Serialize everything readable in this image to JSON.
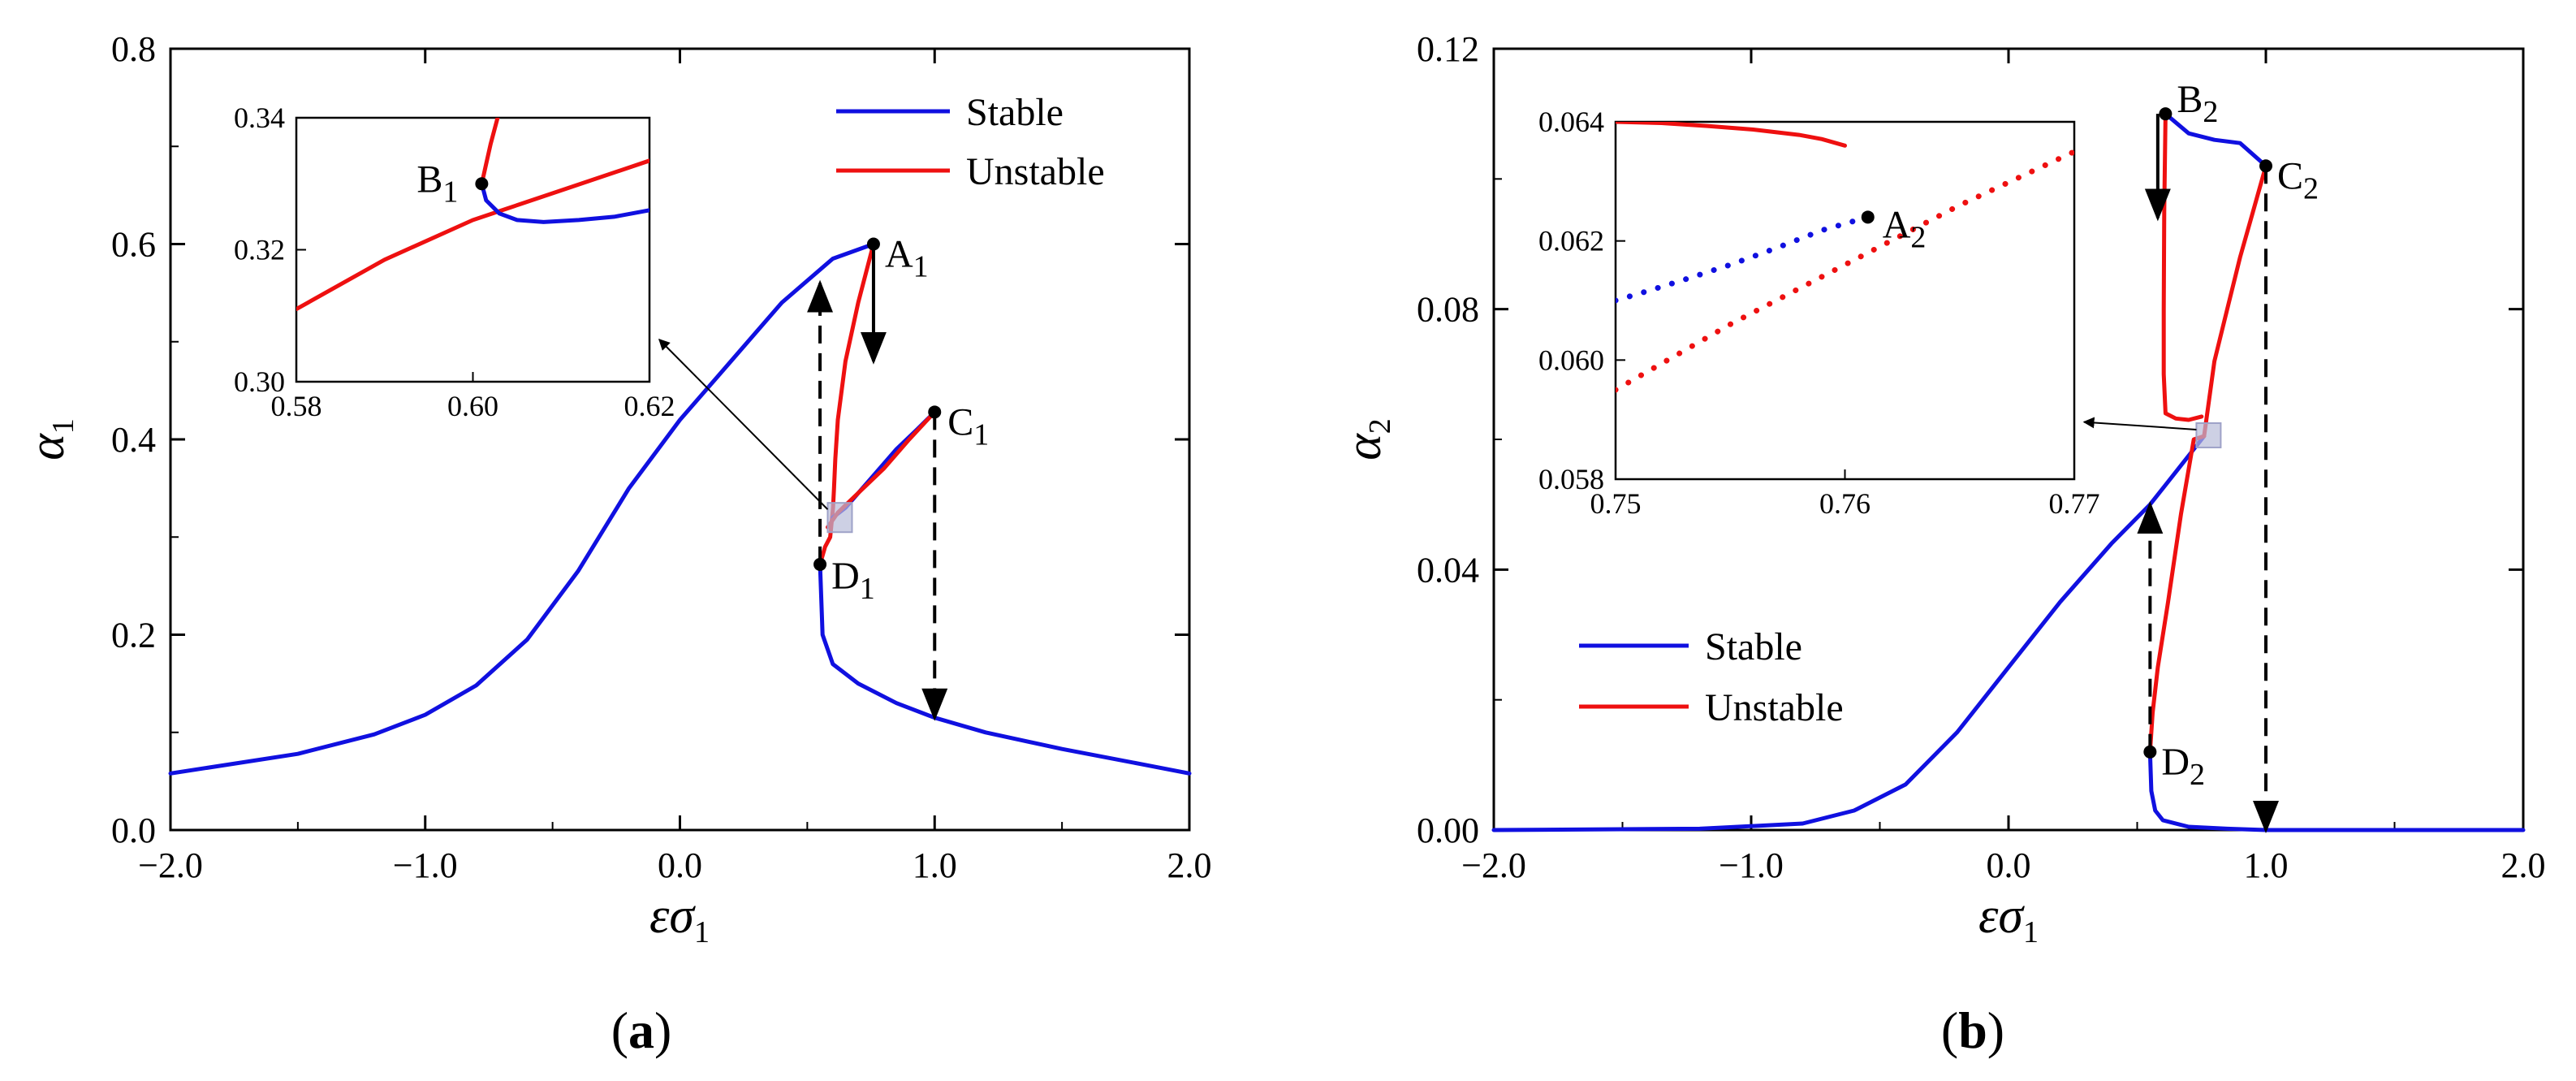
{
  "figure": {
    "panel_a_label": "a",
    "panel_b_label": "b",
    "colors": {
      "stable": "#1010e0",
      "unstable": "#ee1010",
      "axis": "#000000",
      "zoom_box": "#b8bcd8"
    }
  },
  "chart_data": [
    {
      "type": "line",
      "panel": "a",
      "xlabel_main": "εσ",
      "xlabel_sub": "1",
      "ylabel_main": "α",
      "ylabel_sub": "1",
      "xlim": [
        -2.0,
        2.0
      ],
      "ylim": [
        0.0,
        0.8
      ],
      "xticks": [
        -2.0,
        -1.0,
        0.0,
        1.0,
        2.0
      ],
      "xtick_labels": [
        "−2.0",
        "−1.0",
        "0.0",
        "1.0",
        "2.0"
      ],
      "yticks": [
        0.0,
        0.2,
        0.4,
        0.6,
        0.8
      ],
      "ytick_labels": [
        "0.0",
        "0.2",
        "0.4",
        "0.6",
        "0.8"
      ],
      "legend": {
        "position": "top-right",
        "entries": [
          "Stable",
          "Unstable"
        ]
      },
      "series": [
        {
          "name": "Stable",
          "color": "#1010e0",
          "points": [
            [
              -2.0,
              0.058
            ],
            [
              -1.5,
              0.078
            ],
            [
              -1.2,
              0.098
            ],
            [
              -1.0,
              0.118
            ],
            [
              -0.8,
              0.148
            ],
            [
              -0.6,
              0.195
            ],
            [
              -0.4,
              0.265
            ],
            [
              -0.2,
              0.35
            ],
            [
              0.0,
              0.42
            ],
            [
              0.2,
              0.48
            ],
            [
              0.4,
              0.54
            ],
            [
              0.6,
              0.585
            ],
            [
              0.76,
              0.6
            ]
          ]
        },
        {
          "name": "Unstable",
          "color": "#ee1010",
          "points": [
            [
              0.76,
              0.6
            ],
            [
              0.7,
              0.54
            ],
            [
              0.65,
              0.48
            ],
            [
              0.62,
              0.42
            ],
            [
              0.61,
              0.38
            ],
            [
              0.605,
              0.35
            ],
            [
              0.601,
              0.33
            ],
            [
              0.59,
              0.3
            ],
            [
              0.57,
              0.29
            ],
            [
              0.55,
              0.272
            ]
          ]
        },
        {
          "name": "Stable",
          "color": "#1010e0",
          "points": [
            [
              0.55,
              0.272
            ],
            [
              0.56,
              0.2
            ],
            [
              0.6,
              0.17
            ],
            [
              0.7,
              0.15
            ],
            [
              0.85,
              0.13
            ],
            [
              1.0,
              0.115
            ],
            [
              1.2,
              0.1
            ],
            [
              1.5,
              0.083
            ],
            [
              1.8,
              0.068
            ],
            [
              2.0,
              0.058
            ]
          ]
        },
        {
          "name": "Stable",
          "color": "#1010e0",
          "points": [
            [
              0.6,
              0.32
            ],
            [
              0.65,
              0.33
            ],
            [
              0.75,
              0.36
            ],
            [
              0.85,
              0.39
            ],
            [
              0.93,
              0.41
            ],
            [
              1.0,
              0.428
            ]
          ]
        },
        {
          "name": "Unstable",
          "color": "#ee1010",
          "points": [
            [
              1.0,
              0.428
            ],
            [
              0.9,
              0.4
            ],
            [
              0.8,
              0.37
            ],
            [
              0.7,
              0.345
            ],
            [
              0.62,
              0.325
            ],
            [
              0.58,
              0.31
            ]
          ]
        }
      ],
      "points": [
        {
          "label": "A",
          "sub": "1",
          "x": 0.76,
          "y": 0.6
        },
        {
          "label": "C",
          "sub": "1",
          "x": 1.0,
          "y": 0.428
        },
        {
          "label": "D",
          "sub": "1",
          "x": 0.55,
          "y": 0.272
        }
      ],
      "jumps": [
        {
          "x": 0.76,
          "from": 0.6,
          "to": 0.48,
          "style": "solid"
        },
        {
          "x": 1.0,
          "from": 0.428,
          "to": 0.115,
          "style": "dashed"
        },
        {
          "x": 0.55,
          "from": 0.272,
          "to": 0.56,
          "style": "dashed"
        }
      ],
      "zoom_box": {
        "x": [
          0.58,
          0.62
        ],
        "y": [
          0.305,
          0.335
        ]
      },
      "inset": {
        "xlim": [
          0.58,
          0.62
        ],
        "ylim": [
          0.3,
          0.34
        ],
        "xticks": [
          0.58,
          0.6,
          0.62
        ],
        "xtick_labels": [
          "0.58",
          "0.60",
          "0.62"
        ],
        "yticks": [
          0.3,
          0.32,
          0.34
        ],
        "ytick_labels": [
          "0.30",
          "0.32",
          "0.34"
        ],
        "series": [
          {
            "name": "Unstable",
            "color": "#ee1010",
            "points": [
              [
                0.58,
                0.311
              ],
              [
                0.59,
                0.3185
              ],
              [
                0.6,
                0.3245
              ],
              [
                0.61,
                0.329
              ],
              [
                0.62,
                0.3335
              ]
            ]
          },
          {
            "name": "Unstable",
            "color": "#ee1010",
            "points": [
              [
                0.601,
                0.33
              ],
              [
                0.6015,
                0.333
              ],
              [
                0.602,
                0.336
              ],
              [
                0.603,
                0.341
              ]
            ]
          },
          {
            "name": "Stable",
            "color": "#1010e0",
            "points": [
              [
                0.601,
                0.33
              ],
              [
                0.6015,
                0.3275
              ],
              [
                0.603,
                0.3255
              ],
              [
                0.605,
                0.3245
              ],
              [
                0.608,
                0.3242
              ],
              [
                0.612,
                0.3245
              ],
              [
                0.616,
                0.325
              ],
              [
                0.62,
                0.326
              ]
            ]
          }
        ],
        "points": [
          {
            "label": "B",
            "sub": "1",
            "x": 0.601,
            "y": 0.33
          }
        ]
      }
    },
    {
      "type": "line",
      "panel": "b",
      "xlabel_main": "εσ",
      "xlabel_sub": "1",
      "ylabel_main": "α",
      "ylabel_sub": "2",
      "xlim": [
        -2.0,
        2.0
      ],
      "ylim": [
        0.0,
        0.12
      ],
      "xticks": [
        -2.0,
        -1.0,
        0.0,
        1.0,
        2.0
      ],
      "xtick_labels": [
        "−2.0",
        "−1.0",
        "0.0",
        "1.0",
        "2.0"
      ],
      "yticks": [
        0.0,
        0.04,
        0.08,
        0.12
      ],
      "ytick_labels": [
        "0.00",
        "0.04",
        "0.08",
        "0.12"
      ],
      "legend": {
        "position": "bottom-left",
        "entries": [
          "Stable",
          "Unstable"
        ]
      },
      "series": [
        {
          "name": "Stable",
          "color": "#1010e0",
          "points": [
            [
              -2.0,
              0.0
            ],
            [
              -1.2,
              0.0002
            ],
            [
              -0.8,
              0.001
            ],
            [
              -0.6,
              0.003
            ],
            [
              -0.4,
              0.007
            ],
            [
              -0.2,
              0.015
            ],
            [
              0.0,
              0.025
            ],
            [
              0.2,
              0.035
            ],
            [
              0.4,
              0.044
            ],
            [
              0.55,
              0.05
            ],
            [
              0.65,
              0.055
            ],
            [
              0.76,
              0.0605
            ]
          ]
        },
        {
          "name": "Unstable",
          "color": "#ee1010",
          "points": [
            [
              0.76,
              0.0605
            ],
            [
              0.72,
              0.06
            ],
            [
              0.67,
              0.0485
            ],
            [
              0.62,
              0.035
            ],
            [
              0.58,
              0.025
            ],
            [
              0.56,
              0.018
            ],
            [
              0.55,
              0.012
            ]
          ]
        },
        {
          "name": "Stable",
          "color": "#1010e0",
          "points": [
            [
              0.55,
              0.012
            ],
            [
              0.555,
              0.006
            ],
            [
              0.57,
              0.003
            ],
            [
              0.6,
              0.0015
            ],
            [
              0.7,
              0.0005
            ],
            [
              0.85,
              0.0002
            ],
            [
              1.0,
              0.0
            ],
            [
              2.0,
              0.0
            ]
          ]
        },
        {
          "name": "Unstable",
          "color": "#ee1010",
          "points": [
            [
              0.61,
              0.11
            ],
            [
              0.605,
              0.095
            ],
            [
              0.603,
              0.08
            ],
            [
              0.603,
              0.07
            ],
            [
              0.61,
              0.064
            ],
            [
              0.65,
              0.0632
            ],
            [
              0.7,
              0.063
            ],
            [
              0.75,
              0.0635
            ]
          ]
        },
        {
          "name": "Stable",
          "color": "#1010e0",
          "points": [
            [
              0.61,
              0.11
            ],
            [
              0.7,
              0.107
            ],
            [
              0.8,
              0.106
            ],
            [
              0.9,
              0.1055
            ],
            [
              1.0,
              0.102
            ]
          ]
        },
        {
          "name": "Unstable",
          "color": "#ee1010",
          "points": [
            [
              1.0,
              0.102
            ],
            [
              0.95,
              0.095
            ],
            [
              0.9,
              0.088
            ],
            [
              0.85,
              0.08
            ],
            [
              0.8,
              0.072
            ],
            [
              0.76,
              0.0605
            ]
          ]
        }
      ],
      "points": [
        {
          "label": "B",
          "sub": "2",
          "x": 0.61,
          "y": 0.11
        },
        {
          "label": "C",
          "sub": "2",
          "x": 1.0,
          "y": 0.102
        },
        {
          "label": "D",
          "sub": "2",
          "x": 0.55,
          "y": 0.012
        }
      ],
      "jumps": [
        {
          "x": 0.58,
          "from": 0.11,
          "to": 0.094,
          "style": "solid"
        },
        {
          "x": 1.0,
          "from": 0.102,
          "to": 0.0,
          "style": "dashed"
        },
        {
          "x": 0.55,
          "from": 0.012,
          "to": 0.05,
          "style": "dashed"
        }
      ],
      "zoom_box": {
        "x": [
          0.73,
          0.76
        ],
        "y": [
          0.0595,
          0.0625
        ]
      },
      "inset": {
        "xlim": [
          0.75,
          0.77
        ],
        "ylim": [
          0.058,
          0.064
        ],
        "xticks": [
          0.75,
          0.76,
          0.77
        ],
        "xtick_labels": [
          "0.75",
          "0.76",
          "0.77"
        ],
        "yticks": [
          0.058,
          0.06,
          0.062,
          0.064
        ],
        "ytick_labels": [
          "0.058",
          "0.060",
          "0.062",
          "0.064"
        ],
        "series": [
          {
            "name": "Unstable",
            "color": "#ee1010",
            "points": [
              [
                0.75,
                0.064
              ],
              [
                0.752,
                0.06398
              ],
              [
                0.754,
                0.06393
              ],
              [
                0.756,
                0.06387
              ],
              [
                0.758,
                0.06378
              ],
              [
                0.759,
                0.06371
              ],
              [
                0.76,
                0.0636
              ]
            ]
          },
          {
            "name": "Stable",
            "color": "#1010e0",
            "dotted": true,
            "points": [
              [
                0.75,
                0.061
              ],
              [
                0.7515,
                0.06117
              ],
              [
                0.753,
                0.06135
              ],
              [
                0.755,
                0.0616
              ],
              [
                0.757,
                0.06188
              ],
              [
                0.759,
                0.06218
              ],
              [
                0.761,
                0.0624
              ]
            ]
          },
          {
            "name": "Unstable",
            "color": "#ee1010",
            "dotted": true,
            "points": [
              [
                0.75,
                0.0595
              ],
              [
                0.755,
                0.0606
              ],
              [
                0.76,
                0.0616
              ],
              [
                0.765,
                0.0626
              ],
              [
                0.77,
                0.0635
              ]
            ]
          }
        ],
        "points": [
          {
            "label": "A",
            "sub": "2",
            "x": 0.761,
            "y": 0.0624
          }
        ]
      }
    }
  ]
}
